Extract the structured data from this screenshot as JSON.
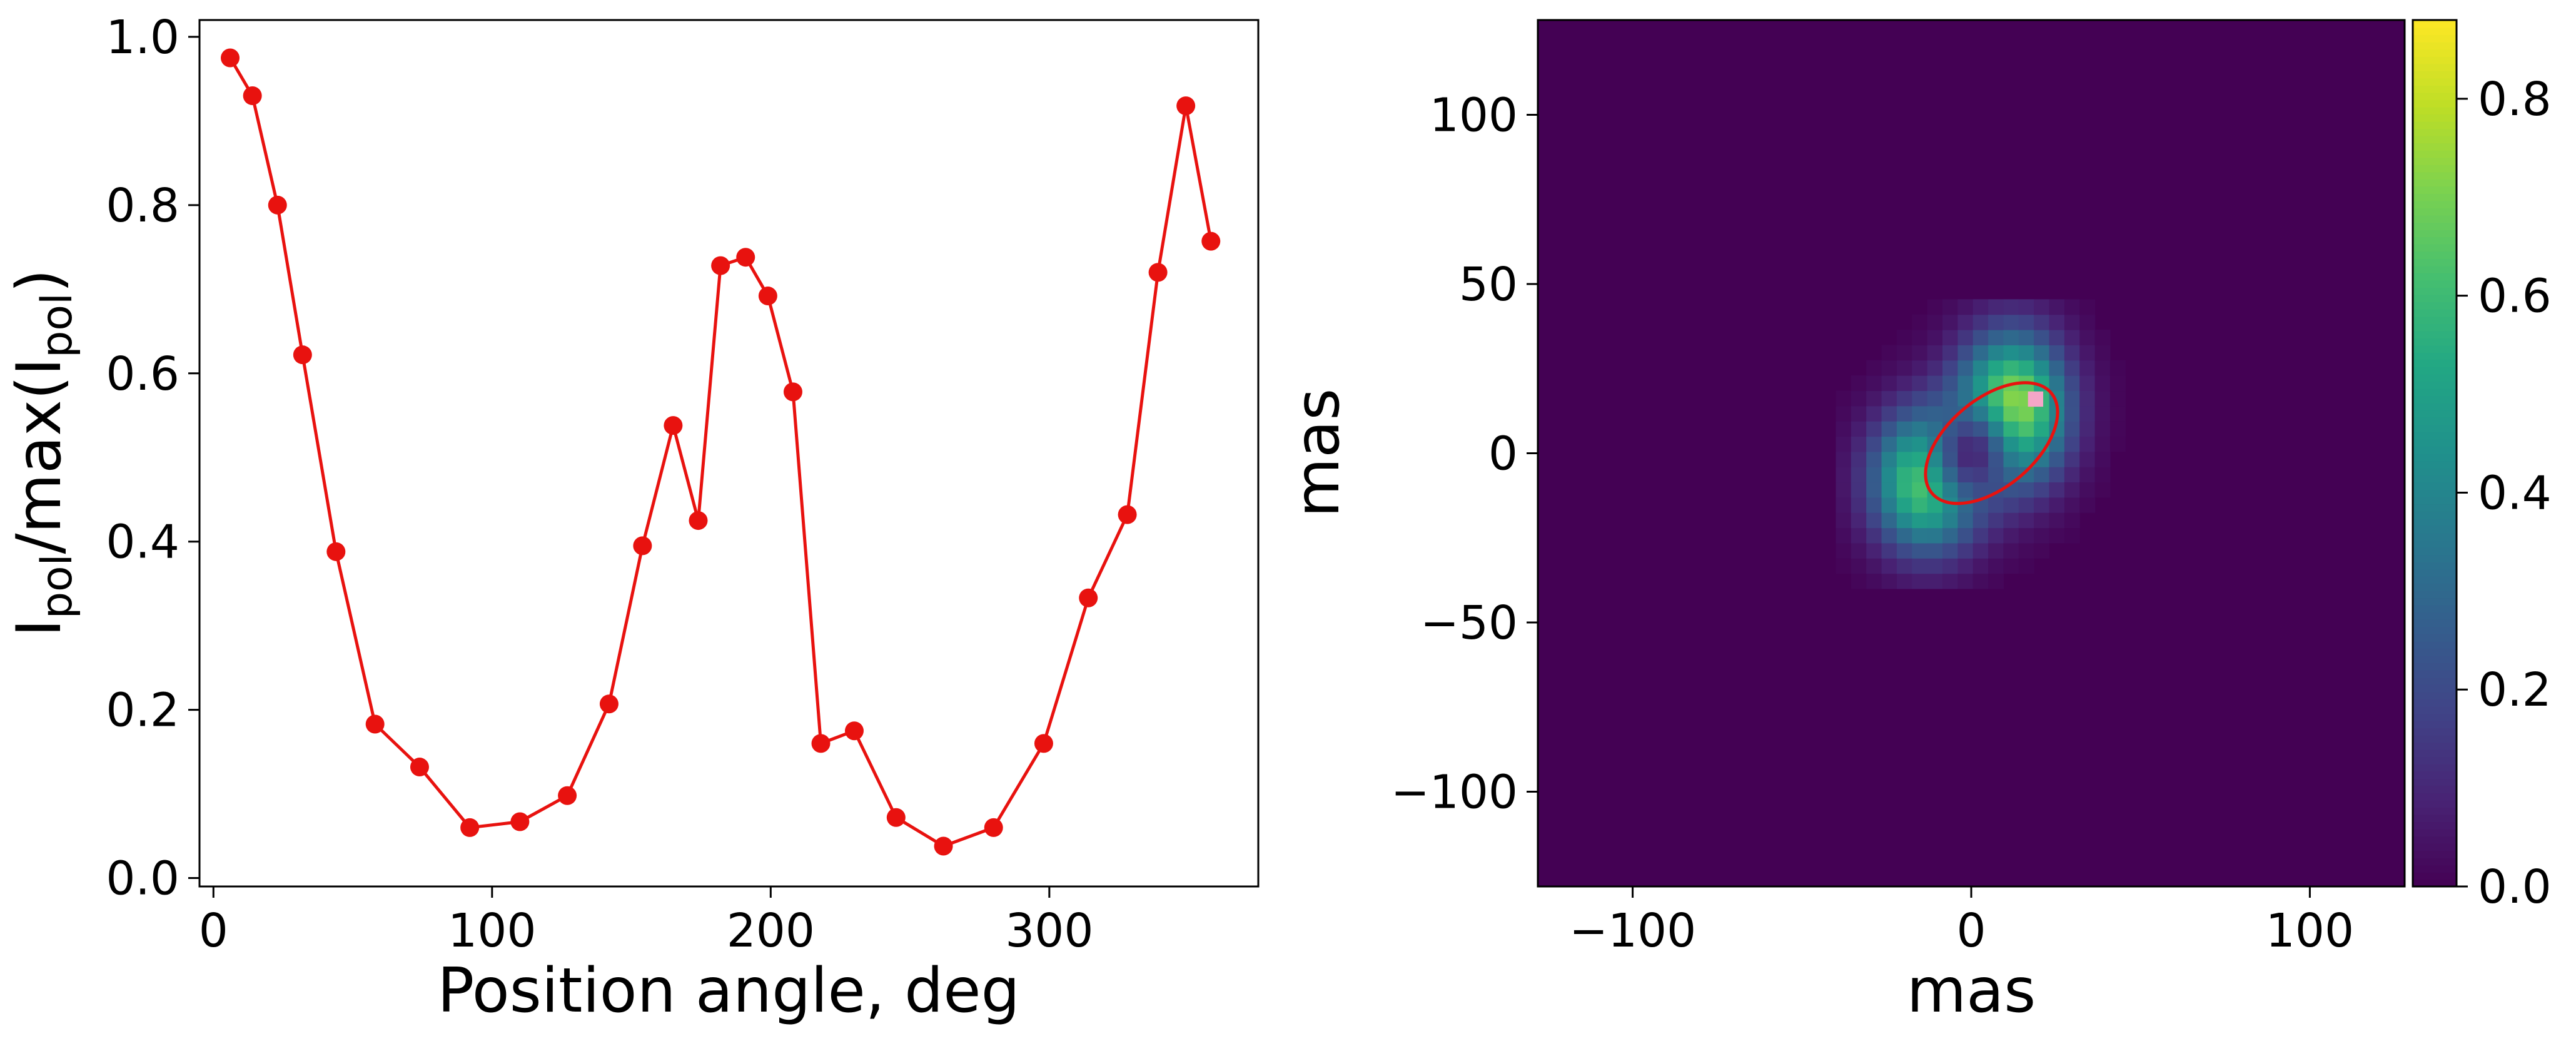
{
  "chart_data": [
    {
      "type": "line",
      "xlabel": "Position angle, deg",
      "ylabel_parts": {
        "i1": "I",
        "s1": "pol",
        "mid": "/max(I",
        "s2": "pol",
        "end": ")"
      },
      "xlim": [
        -5,
        375
      ],
      "ylim": [
        -0.01,
        1.02
      ],
      "xticks": [
        0,
        100,
        200,
        300
      ],
      "yticks": [
        0.0,
        0.2,
        0.4,
        0.6,
        0.8,
        1.0
      ],
      "color": "#e8120f",
      "series": [
        {
          "x": [
            6,
            14,
            23,
            32,
            44,
            58,
            74,
            92,
            110,
            127,
            142,
            154,
            165,
            174,
            182,
            191,
            199,
            208,
            218,
            230,
            245,
            262,
            280,
            298,
            314,
            328,
            339,
            349,
            358
          ],
          "y": [
            0.975,
            0.93,
            0.8,
            0.622,
            0.388,
            0.183,
            0.132,
            0.06,
            0.067,
            0.098,
            0.207,
            0.395,
            0.538,
            0.425,
            0.728,
            0.738,
            0.692,
            0.578,
            0.16,
            0.175,
            0.072,
            0.038,
            0.06,
            0.16,
            0.333,
            0.432,
            0.72,
            0.918,
            0.757
          ]
        }
      ]
    },
    {
      "type": "heatmap",
      "xlabel": "mas",
      "ylabel": "mas",
      "xlim": [
        -128,
        128
      ],
      "ylim": [
        -128,
        128
      ],
      "xticks": [
        -100,
        0,
        100
      ],
      "yticks": [
        -100,
        -50,
        0,
        50,
        100
      ],
      "xtick_labels": [
        "−100",
        "0",
        "100"
      ],
      "ytick_labels": [
        "−100",
        "−50",
        "0",
        "50",
        "100"
      ],
      "colormap": "viridis",
      "color_range": [
        0.0,
        0.88
      ],
      "colorbar_ticks": [
        0.0,
        0.2,
        0.4,
        0.6,
        0.8
      ],
      "colorbar_tick_labels": [
        "0.0",
        "0.2",
        "0.4",
        "0.6",
        "0.8"
      ],
      "pixel_size_mas": 4.5,
      "blobs": [
        {
          "x": 12,
          "y": 13,
          "sx": 11,
          "sy": 15,
          "amp": 0.82
        },
        {
          "x": -13,
          "y": -8,
          "sx": 11,
          "sy": 14,
          "amp": 0.72
        }
      ],
      "hole": {
        "x": 0,
        "y": 0,
        "sx": 9,
        "sy": 11,
        "depth": 0.85
      },
      "peak_marker": {
        "x": 19,
        "y": 16,
        "color": "#f4a6c8"
      },
      "ellipse": {
        "cx": 6,
        "cy": 3,
        "semi_major": 23,
        "semi_minor": 13,
        "angle_deg": 40,
        "color": "#e8120f"
      },
      "colorbar_label": ""
    }
  ]
}
